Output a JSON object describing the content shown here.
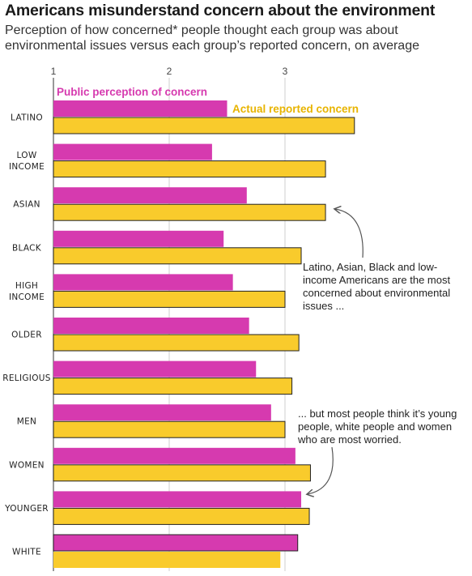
{
  "header": {
    "title": "Americans misunderstand concern about the environment",
    "subtitle": "Perception of how concerned* people thought each group was about environmental issues versus each group’s reported concern, on average"
  },
  "annotations": {
    "note1": "Latino, Asian, Black and low-income Americans are the most concerned about environmental issues ...",
    "note2": "... but most people think it’s young people, white people and women who are most worried."
  },
  "chart_data": {
    "type": "bar",
    "orientation": "horizontal",
    "title": "Americans misunderstand concern about the environment",
    "subtitle": "Perception of how concerned* people thought each group was about environmental issues versus each group’s reported concern, on average",
    "categories": [
      "LATINO",
      "LOW\nINCOME",
      "ASIAN",
      "BLACK",
      "HIGH\nINCOME",
      "OLDER",
      "RELIGIOUS",
      "MEN",
      "WOMEN",
      "YOUNGER",
      "WHITE"
    ],
    "series": [
      {
        "name": "Public perception of concern",
        "color": "#d63aaf",
        "values": [
          2.5,
          2.37,
          2.67,
          2.47,
          2.55,
          2.69,
          2.75,
          2.88,
          3.09,
          3.14,
          3.11
        ]
      },
      {
        "name": "Actual reported concern",
        "color": "#f9cb2c",
        "values": [
          3.6,
          3.35,
          3.35,
          3.14,
          3.0,
          3.12,
          3.06,
          3.0,
          3.22,
          3.21,
          2.96
        ]
      }
    ],
    "xlim": [
      1,
      3.6
    ],
    "xticks": [
      1,
      2,
      3
    ],
    "xlabel": "",
    "ylabel": "",
    "grid": true,
    "legend": "top-left, inline labels"
  }
}
